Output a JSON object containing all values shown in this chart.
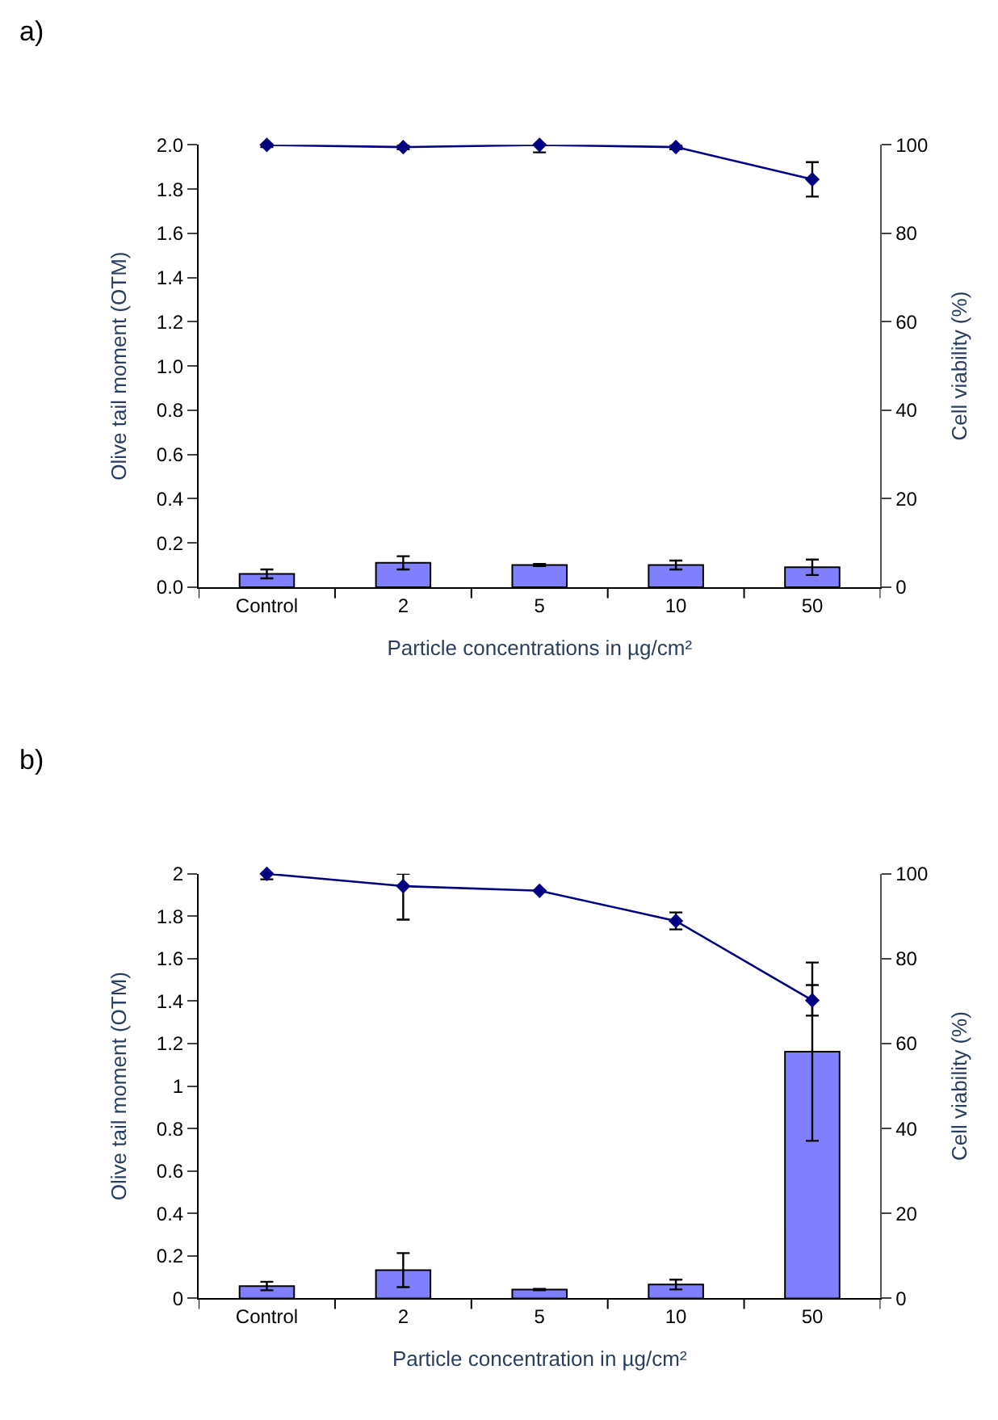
{
  "chart_data": [
    {
      "type": "bar",
      "title": "a)",
      "xlabel": "Particle concentrations in µg/cm²",
      "ylabel": "Olive tail moment (OTM)",
      "y2label": "Cell viability (%)",
      "categories": [
        "Control",
        "2",
        "5",
        "10",
        "50"
      ],
      "series": [
        {
          "color": "#8080ff",
          "values": [
            0.06,
            0.11,
            0.1,
            0.1,
            0.09
          ],
          "errors": [
            0.02,
            0.03,
            0.005,
            0.02,
            0.035
          ]
        },
        {
          "type": "line",
          "axis": "y2",
          "color": "#000080",
          "marker": "diamond",
          "values": [
            100,
            99.5,
            100,
            99.5,
            92.2
          ],
          "errors": [
            0.5,
            0.5,
            [
              98.3,
              100
            ],
            0.5,
            3.9
          ]
        }
      ],
      "ylim": [
        0,
        2
      ],
      "yticks": [
        {
          "value": 0,
          "label": "0.0"
        },
        {
          "value": 0.2,
          "label": "0.2"
        },
        {
          "value": 0.4,
          "label": "0.4"
        },
        {
          "value": 0.6,
          "label": "0.6"
        },
        {
          "value": 0.8,
          "label": "0.8"
        },
        {
          "value": 1.0,
          "label": "1.0"
        },
        {
          "value": 1.2,
          "label": "1.2"
        },
        {
          "value": 1.4,
          "label": "1.4"
        },
        {
          "value": 1.6,
          "label": "1.6"
        },
        {
          "value": 1.8,
          "label": "1.8"
        },
        {
          "value": 2.0,
          "label": "2.0"
        }
      ],
      "y2lim": [
        0,
        100
      ],
      "y2ticks": [
        0,
        20,
        40,
        60,
        80,
        100
      ]
    },
    {
      "type": "bar",
      "title": "b)",
      "xlabel": "Particle concentration in µg/cm²",
      "ylabel": "Olive tail moment (OTM)",
      "y2label": "Cell viability (%)",
      "categories": [
        "Control",
        "2",
        "5",
        "10",
        "50"
      ],
      "series": [
        {
          "color": "#8080ff",
          "values": [
            0.058,
            0.133,
            0.041,
            0.065,
            1.162
          ],
          "errors": [
            0.02,
            0.08,
            0.003,
            0.023,
            0.42
          ]
        },
        {
          "type": "line",
          "axis": "y2",
          "color": "#000080",
          "marker": "diamond",
          "values": [
            100,
            97.1,
            96.0,
            88.9,
            70.2
          ],
          "errors": [
            1.3,
            [
              89.2,
              100
            ],
            null,
            2,
            3.6
          ]
        }
      ],
      "ylim": [
        0,
        2
      ],
      "yticks": [
        0,
        0.2,
        0.4,
        0.6,
        0.8,
        1,
        1.2,
        1.4,
        1.6,
        1.8,
        2
      ],
      "y2lim": [
        0,
        100
      ],
      "y2ticks": [
        0,
        20,
        40,
        60,
        80,
        100
      ]
    }
  ]
}
